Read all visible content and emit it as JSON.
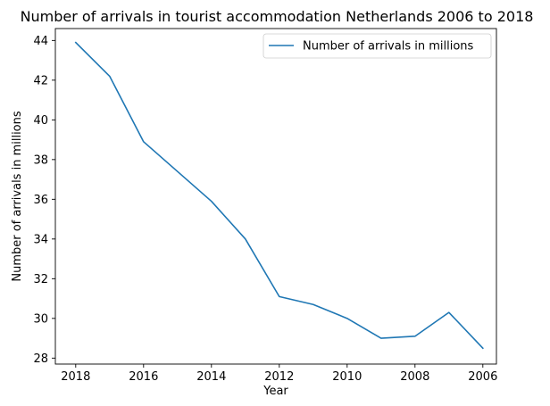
{
  "chart_data": {
    "type": "line",
    "title": "Number of arrivals in tourist accommodation Netherlands 2006 to 2018",
    "xlabel": "Year",
    "ylabel": "Number of arrivals in millions",
    "x": [
      2018,
      2017,
      2016,
      2015,
      2014,
      2013,
      2012,
      2011,
      2010,
      2009,
      2008,
      2007,
      2006
    ],
    "series": [
      {
        "name": "Number of arrivals in millions",
        "color": "#1f77b4",
        "values": [
          43.9,
          42.2,
          38.9,
          37.4,
          35.9,
          34.0,
          31.1,
          30.7,
          30.0,
          29.0,
          29.1,
          30.3,
          28.5
        ]
      }
    ],
    "xlim": [
      2018.6,
      2005.6
    ],
    "ylim": [
      27.7,
      44.6
    ],
    "xticks": [
      2018,
      2016,
      2014,
      2012,
      2010,
      2008,
      2006
    ],
    "yticks": [
      28,
      30,
      32,
      34,
      36,
      38,
      40,
      42,
      44
    ],
    "x_inverted": true,
    "grid": false,
    "legend_position": "upper right"
  }
}
